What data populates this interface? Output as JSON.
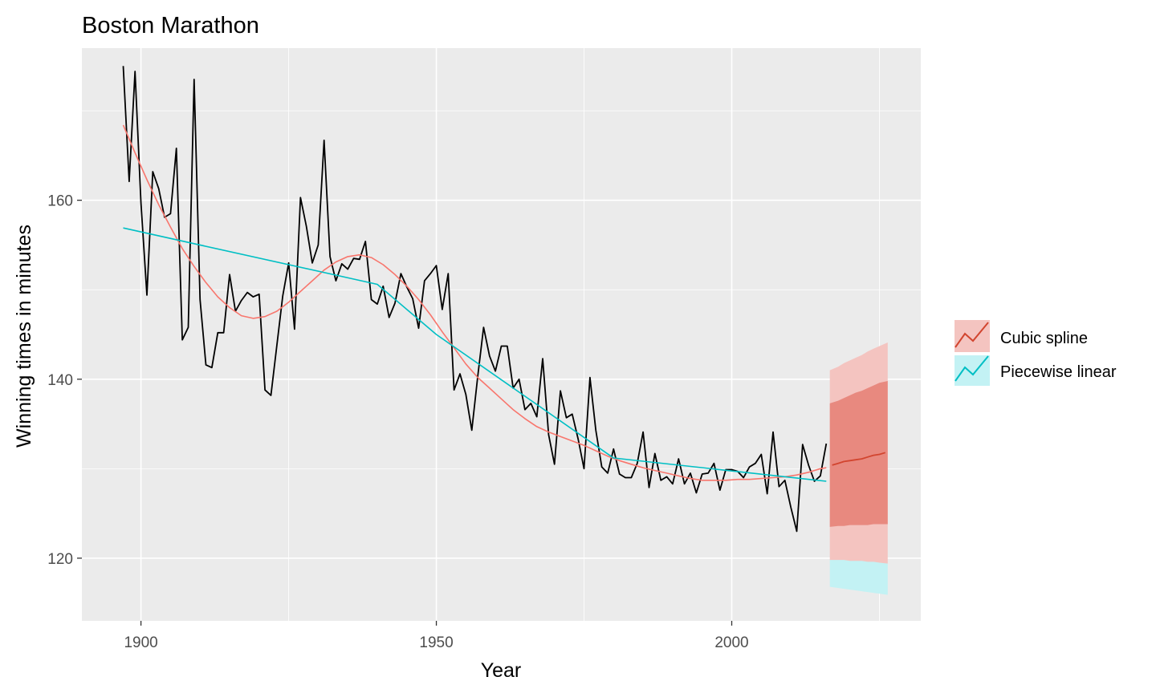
{
  "chart_data": {
    "type": "line",
    "title": "Boston Marathon",
    "xlabel": "Year",
    "ylabel": "Winning times in minutes",
    "xlim": [
      1890,
      2032
    ],
    "ylim": [
      113,
      177
    ],
    "x_ticks": [
      1900,
      1950,
      2000
    ],
    "y_ticks": [
      120,
      140,
      160
    ],
    "grid": true,
    "legend_position": "right",
    "colors": {
      "panel": "#ebebeb",
      "grid": "#ffffff",
      "observed": "#000000",
      "cubic_spline": "#f8766d",
      "cubic_spline_forecast": "#d2452f",
      "cubic_spline_band_80": "#e8897f",
      "cubic_spline_band_95": "#f4c4c0",
      "piecewise_linear": "#00bfc4",
      "piecewise_linear_band_95": "#c3f2f4"
    },
    "observed": {
      "x": [
        1897,
        1898,
        1899,
        1900,
        1901,
        1902,
        1903,
        1904,
        1905,
        1906,
        1907,
        1908,
        1909,
        1910,
        1911,
        1912,
        1913,
        1914,
        1915,
        1916,
        1917,
        1918,
        1919,
        1920,
        1921,
        1922,
        1923,
        1924,
        1925,
        1926,
        1927,
        1928,
        1929,
        1930,
        1931,
        1932,
        1933,
        1934,
        1935,
        1936,
        1937,
        1938,
        1939,
        1940,
        1941,
        1942,
        1943,
        1944,
        1945,
        1946,
        1947,
        1948,
        1949,
        1950,
        1951,
        1952,
        1953,
        1954,
        1955,
        1956,
        1957,
        1958,
        1959,
        1960,
        1961,
        1962,
        1963,
        1964,
        1965,
        1966,
        1967,
        1968,
        1969,
        1970,
        1971,
        1972,
        1973,
        1974,
        1975,
        1976,
        1977,
        1978,
        1979,
        1980,
        1981,
        1982,
        1983,
        1984,
        1985,
        1986,
        1987,
        1988,
        1989,
        1990,
        1991,
        1992,
        1993,
        1994,
        1995,
        1996,
        1997,
        1998,
        1999,
        2000,
        2001,
        2002,
        2003,
        2004,
        2005,
        2006,
        2007,
        2008,
        2009,
        2010,
        2011,
        2012,
        2013,
        2014,
        2015,
        2016
      ],
      "y": [
        175,
        162.1,
        174.4,
        159.7,
        149.4,
        163.2,
        161.3,
        158.1,
        158.5,
        165.8,
        144.4,
        145.8,
        173.5,
        148.9,
        141.6,
        141.3,
        145.2,
        145.2,
        151.7,
        147.6,
        148.8,
        149.7,
        149.2,
        149.5,
        138.8,
        138.2,
        143.8,
        149.3,
        153.0,
        145.6,
        160.3,
        157.1,
        153.0,
        155.0,
        166.7,
        153.7,
        151.0,
        152.9,
        152.3,
        153.5,
        153.4,
        155.4,
        148.9,
        148.4,
        150.4,
        146.9,
        148.5,
        151.8,
        150.3,
        149.0,
        145.7,
        151.0,
        151.8,
        152.7,
        147.8,
        151.8,
        138.8,
        140.6,
        138.3,
        134.3,
        140.3,
        145.8,
        142.6,
        140.9,
        143.7,
        143.7,
        139.0,
        140.0,
        136.6,
        137.3,
        135.8,
        142.3,
        133.8,
        130.5,
        138.7,
        135.7,
        136.1,
        133.3,
        130.0,
        140.2,
        134.3,
        130.2,
        129.5,
        132.2,
        129.4,
        129.0,
        129.0,
        130.6,
        134.1,
        127.9,
        131.7,
        128.7,
        129.1,
        128.3,
        131.1,
        128.3,
        129.5,
        127.3,
        129.4,
        129.5,
        130.6,
        127.6,
        129.9,
        129.9,
        129.7,
        129.0,
        130.2,
        130.6,
        131.6,
        127.2,
        134.1,
        128.0,
        128.7,
        125.7,
        123.0,
        132.7,
        130.4,
        128.6,
        129.2,
        132.8
      ]
    },
    "series": [
      {
        "name": "Cubic spline",
        "fitted_x": [
          1897,
          1899,
          1901,
          1903,
          1905,
          1907,
          1909,
          1911,
          1913,
          1915,
          1917,
          1919,
          1921,
          1923,
          1925,
          1927,
          1929,
          1931,
          1933,
          1935,
          1937,
          1939,
          1941,
          1943,
          1945,
          1947,
          1949,
          1951,
          1953,
          1955,
          1957,
          1959,
          1961,
          1963,
          1965,
          1967,
          1969,
          1971,
          1973,
          1975,
          1977,
          1979,
          1981,
          1983,
          1985,
          1987,
          1989,
          1991,
          1993,
          1995,
          1997,
          1999,
          2001,
          2003,
          2005,
          2007,
          2009,
          2011,
          2013,
          2015,
          2016
        ],
        "fitted_y": [
          168.4,
          165.3,
          162.3,
          159.5,
          157.0,
          154.6,
          152.6,
          150.8,
          149.2,
          148.0,
          147.1,
          146.8,
          147.0,
          147.6,
          148.6,
          149.8,
          151.0,
          152.2,
          153.1,
          153.7,
          153.9,
          153.6,
          152.8,
          151.7,
          150.4,
          148.9,
          147.2,
          145.3,
          143.5,
          141.7,
          140.2,
          139.0,
          137.8,
          136.6,
          135.6,
          134.7,
          134.1,
          133.6,
          133.1,
          132.6,
          132.0,
          131.4,
          130.9,
          130.5,
          130.1,
          129.8,
          129.5,
          129.2,
          128.9,
          128.7,
          128.7,
          128.7,
          128.8,
          128.8,
          128.9,
          129.0,
          129.1,
          129.3,
          129.6,
          130.0,
          130.1
        ],
        "forecast_x": [
          2017,
          2018,
          2019,
          2020,
          2021,
          2022,
          2023,
          2024,
          2025,
          2026
        ],
        "forecast_y": [
          130.4,
          130.6,
          130.8,
          130.9,
          131.0,
          131.1,
          131.3,
          131.5,
          131.6,
          131.8
        ],
        "lower_80": [
          123.5,
          123.6,
          123.6,
          123.7,
          123.7,
          123.7,
          123.7,
          123.8,
          123.8,
          123.8
        ],
        "upper_80": [
          137.3,
          137.6,
          137.9,
          138.2,
          138.5,
          138.7,
          139.0,
          139.3,
          139.6,
          139.8
        ],
        "lower_95": [
          119.8,
          119.8,
          119.8,
          119.7,
          119.7,
          119.7,
          119.6,
          119.6,
          119.5,
          119.4
        ],
        "upper_95": [
          141.0,
          141.4,
          141.8,
          142.1,
          142.4,
          142.7,
          143.1,
          143.4,
          143.7,
          144.1
        ]
      },
      {
        "name": "Piecewise linear",
        "fitted_x": [
          1897,
          1940,
          1950,
          1980,
          2016
        ],
        "fitted_y": [
          156.9,
          150.6,
          145.0,
          131.2,
          128.6
        ],
        "forecast_x": [
          2017,
          2026
        ],
        "lower_95": [
          116.8,
          115.9
        ],
        "upper_95": [
          119.9,
          119.6
        ]
      }
    ]
  }
}
